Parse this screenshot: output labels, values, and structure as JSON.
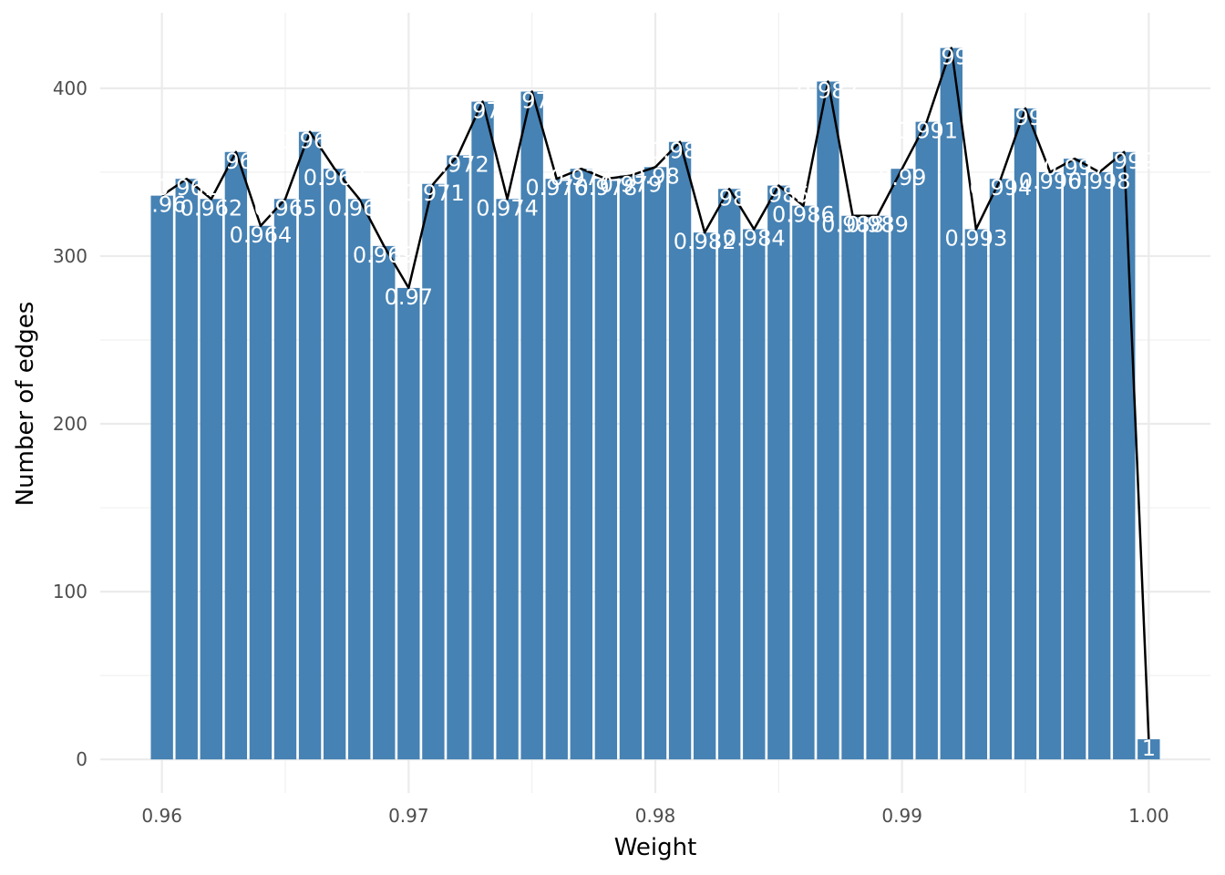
{
  "chart_data": {
    "type": "bar",
    "title": "",
    "xlabel": "Weight",
    "ylabel": "Number of edges",
    "xlim": [
      0.9575,
      1.0025
    ],
    "ylim": [
      -20,
      445
    ],
    "x_ticks": [
      0.96,
      0.97,
      0.98,
      0.99,
      1.0
    ],
    "x_tick_labels": [
      "0.96",
      "0.97",
      "0.98",
      "0.99",
      "1.00"
    ],
    "y_ticks": [
      0,
      100,
      200,
      300,
      400
    ],
    "y_tick_labels": [
      "0",
      "100",
      "200",
      "300",
      "400"
    ],
    "grid": true,
    "bar_color": "#4682b4",
    "line_color": "#000000",
    "label_color": "#ffffff",
    "x": [
      0.96,
      0.961,
      0.962,
      0.963,
      0.964,
      0.965,
      0.966,
      0.967,
      0.968,
      0.969,
      0.97,
      0.971,
      0.972,
      0.973,
      0.974,
      0.975,
      0.976,
      0.977,
      0.978,
      0.979,
      0.98,
      0.981,
      0.982,
      0.983,
      0.984,
      0.985,
      0.986,
      0.987,
      0.988,
      0.989,
      0.99,
      0.991,
      0.992,
      0.993,
      0.994,
      0.995,
      0.996,
      0.997,
      0.998,
      0.999,
      1.0
    ],
    "values": [
      336,
      346,
      334,
      362,
      318,
      334,
      374,
      352,
      334,
      306,
      281,
      343,
      360,
      392,
      334,
      398,
      346,
      352,
      346,
      348,
      353,
      368,
      314,
      340,
      316,
      342,
      330,
      404,
      324,
      324,
      352,
      380,
      424,
      316,
      346,
      388,
      350,
      358,
      350,
      362,
      12
    ],
    "labels": [
      "0.96",
      "0.961",
      "0.962",
      "0.963",
      "0.964",
      "0.965",
      "0.966",
      "0.967",
      "0.968",
      "0.969",
      "0.97",
      "0.971",
      "0.972",
      "0.973",
      "0.974",
      "0.975",
      "0.976",
      "0.977",
      "0.978",
      "0.979",
      "0.98",
      "0.981",
      "0.982",
      "0.983",
      "0.984",
      "0.985",
      "0.986",
      "0.987",
      "0.988",
      "0.989",
      "0.99",
      "0.991",
      "0.992",
      "0.993",
      "0.994",
      "0.995",
      "0.996",
      "0.997",
      "0.998",
      "0.999",
      "1"
    ]
  }
}
